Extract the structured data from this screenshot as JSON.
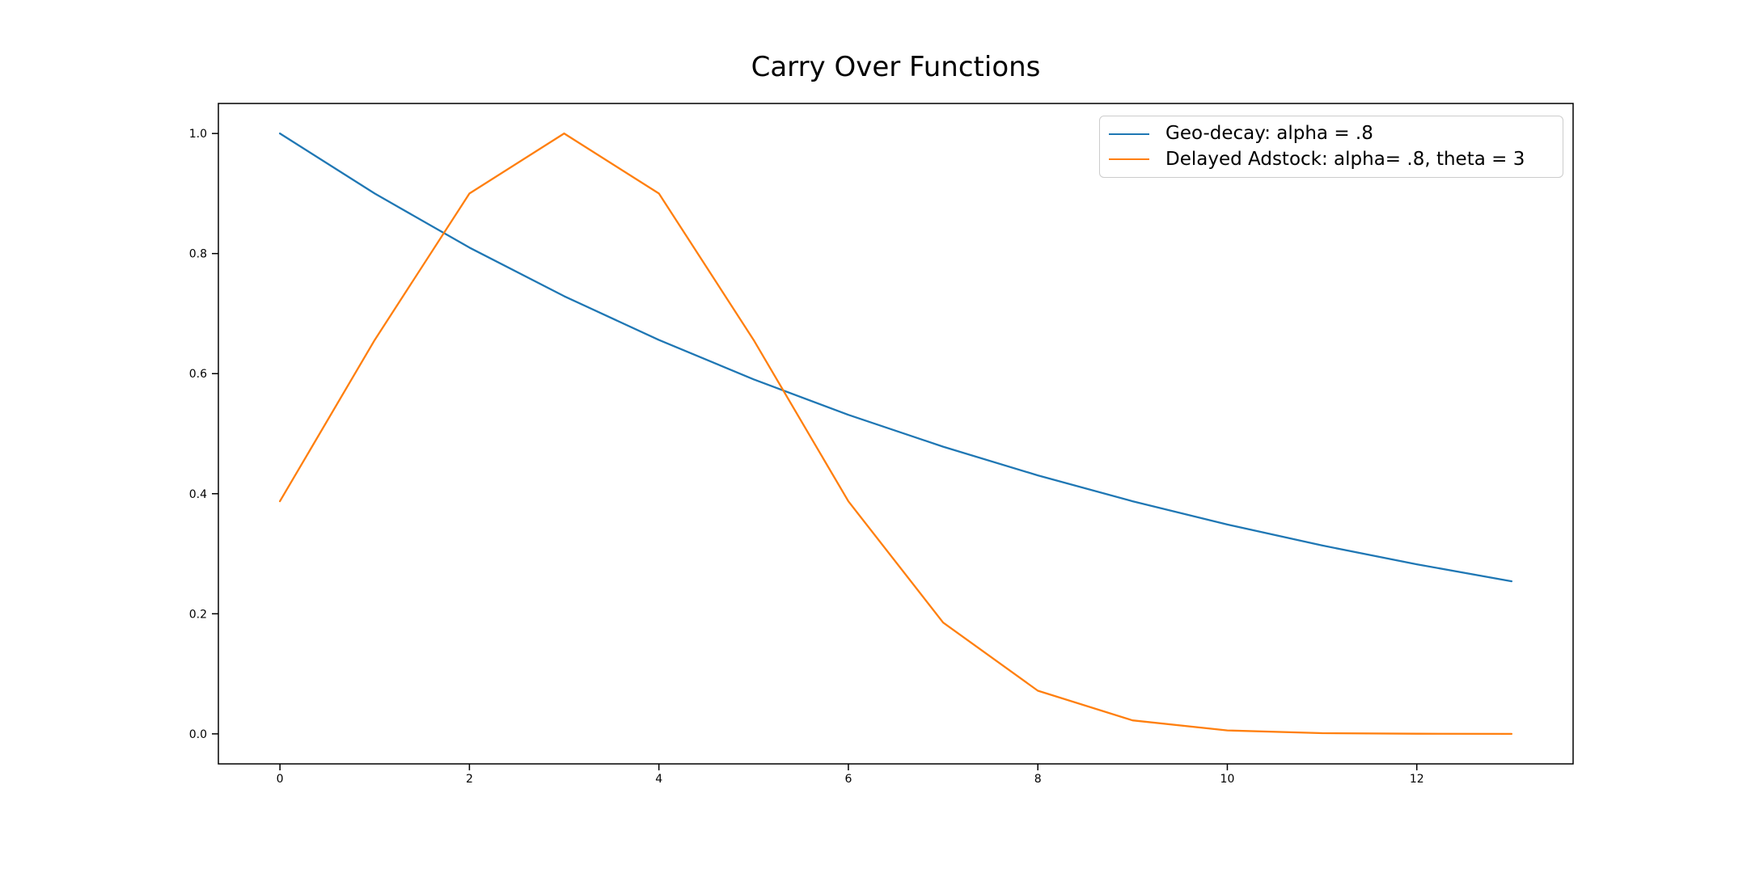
{
  "title": "Carry Over Functions",
  "chart_data": {
    "type": "line",
    "title": "Carry Over Functions",
    "xlabel": "",
    "ylabel": "",
    "grid": false,
    "legend_position": "upper right",
    "xlim": [
      -0.65,
      13.65
    ],
    "ylim": [
      -0.05,
      1.05
    ],
    "xticks": {
      "values": [
        0,
        2,
        4,
        6,
        8,
        10,
        12
      ],
      "labels": [
        "0",
        "2",
        "4",
        "6",
        "8",
        "10",
        "12"
      ]
    },
    "yticks": {
      "values": [
        0.0,
        0.2,
        0.4,
        0.6,
        0.8,
        1.0
      ],
      "labels": [
        "0.0",
        "0.2",
        "0.4",
        "0.6",
        "0.8",
        "1.0"
      ]
    },
    "x": [
      0,
      1,
      2,
      3,
      4,
      5,
      6,
      7,
      8,
      9,
      10,
      11,
      12,
      13
    ],
    "series": [
      {
        "name": "Geo-decay: alpha = .8",
        "color": "#1f77b4",
        "values": [
          1.0,
          0.9,
          0.81,
          0.729,
          0.6561,
          0.5905,
          0.5314,
          0.4783,
          0.4305,
          0.3874,
          0.3487,
          0.3138,
          0.2824,
          0.2542
        ]
      },
      {
        "name": "Delayed Adstock: alpha= .8, theta = 3",
        "color": "#ff7f0e",
        "values": [
          0.3874,
          0.6561,
          0.9,
          1.0,
          0.9,
          0.6561,
          0.3874,
          0.1853,
          0.0718,
          0.0225,
          0.0057,
          0.0012,
          0.0002,
          0.0
        ]
      }
    ]
  },
  "legend": {
    "items": [
      {
        "label": "Geo-decay: alpha = .8",
        "color": "#1f77b4"
      },
      {
        "label": "Delayed Adstock: alpha= .8, theta = 3",
        "color": "#ff7f0e"
      }
    ]
  },
  "style": {
    "axis_color": "#000000",
    "tick_label_color": "#000000",
    "background": "#ffffff"
  }
}
